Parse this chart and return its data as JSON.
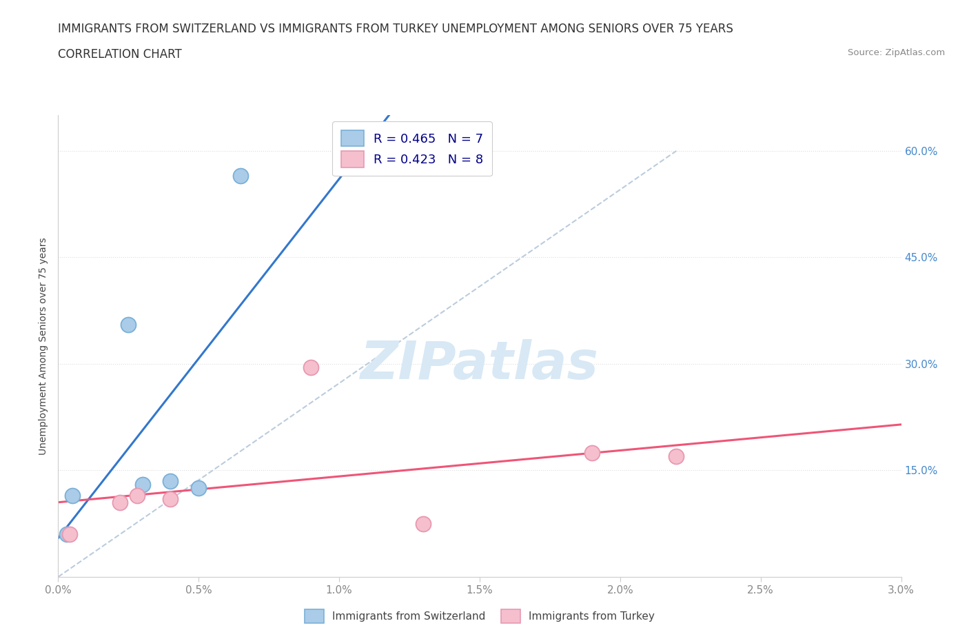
{
  "title_line1": "IMMIGRANTS FROM SWITZERLAND VS IMMIGRANTS FROM TURKEY UNEMPLOYMENT AMONG SENIORS OVER 75 YEARS",
  "title_line2": "CORRELATION CHART",
  "source_text": "Source: ZipAtlas.com",
  "ylabel": "Unemployment Among Seniors over 75 years",
  "xlim": [
    0.0,
    0.03
  ],
  "ylim": [
    0.0,
    0.65
  ],
  "xtick_labels": [
    "0.0%",
    "0.5%",
    "1.0%",
    "1.5%",
    "2.0%",
    "2.5%",
    "3.0%"
  ],
  "xtick_values": [
    0.0,
    0.005,
    0.01,
    0.015,
    0.02,
    0.025,
    0.03
  ],
  "ytick_labels": [
    "15.0%",
    "30.0%",
    "45.0%",
    "60.0%"
  ],
  "ytick_values": [
    0.15,
    0.3,
    0.45,
    0.6
  ],
  "switzerland_x": [
    0.0003,
    0.0005,
    0.0025,
    0.003,
    0.004,
    0.005,
    0.0065
  ],
  "switzerland_y": [
    0.06,
    0.115,
    0.355,
    0.13,
    0.135,
    0.125,
    0.565
  ],
  "turkey_x": [
    0.0004,
    0.0022,
    0.0028,
    0.004,
    0.009,
    0.013,
    0.019,
    0.022
  ],
  "turkey_y": [
    0.06,
    0.105,
    0.115,
    0.11,
    0.295,
    0.075,
    0.175,
    0.17
  ],
  "swiss_color": "#aacce8",
  "swiss_edge_color": "#7ab0d8",
  "turkey_color": "#f5bfce",
  "turkey_edge_color": "#e898b0",
  "swiss_R": 0.465,
  "swiss_N": 7,
  "turkey_R": 0.423,
  "turkey_N": 8,
  "swiss_trend_color": "#3377cc",
  "turkey_trend_color": "#ee5577",
  "diagonal_color": "#bbccdd",
  "watermark_color": "#d8e8f5",
  "watermark_text": "ZIPatlas",
  "background_color": "#ffffff",
  "grid_color": "#dddddd",
  "title_fontsize": 12,
  "axis_label_fontsize": 10,
  "tick_fontsize": 11,
  "legend_fontsize": 13,
  "scatter_size": 250
}
